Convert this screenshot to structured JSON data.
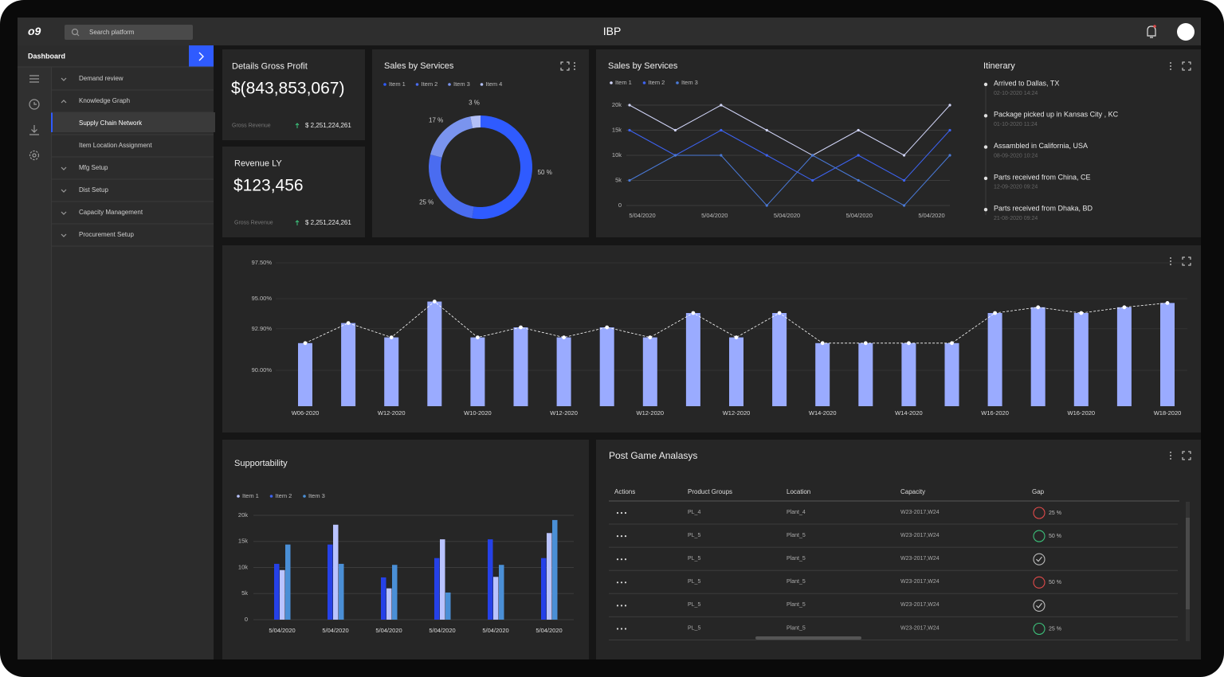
{
  "header": {
    "logo": "o9",
    "search_placeholder": "Search platform",
    "title": "IBP"
  },
  "sidebar": {
    "title": "Dashboard",
    "menu": [
      {
        "label": "Demand review"
      },
      {
        "label": "Knowledge Graph",
        "open": true,
        "items": [
          "Supply Chain Network",
          "Item Location Assignment"
        ],
        "active_item": 0
      },
      {
        "label": "Mfg Setup"
      },
      {
        "label": "Dist Setup"
      },
      {
        "label": "Capacity Management"
      },
      {
        "label": "Procurement Setup"
      }
    ]
  },
  "kpis": [
    {
      "title": "Details Gross Profit",
      "value": "$(843,853,067)",
      "caption": "Gross Revenue",
      "delta": "$ 2,251,224,261"
    },
    {
      "title": "Revenue LY",
      "value": "$123,456",
      "caption": "Gross Revenue",
      "delta": "$ 2,251,224,261"
    }
  ],
  "donut": {
    "type": "pie",
    "title": "Sales by Services",
    "categories": [
      "Item 1",
      "Item 2",
      "Item 3",
      "Item 4"
    ],
    "values": [
      50,
      25,
      17,
      3
    ],
    "value_labels": [
      "50 %",
      "25 %",
      "17 %",
      "3 %"
    ],
    "colors": [
      "#2f5bff",
      "#4a6cf0",
      "#7a94ee",
      "#b3c0f7"
    ],
    "donut": true
  },
  "line_chart": {
    "type": "line",
    "title": "Sales by Services",
    "x_labels": [
      "5/04/2020",
      "5/04/2020",
      "5/04/2020",
      "5/04/2020",
      "5/04/2020"
    ],
    "series": [
      {
        "name": "Item 1",
        "color": "#d0d4f7",
        "values": [
          20000,
          15000,
          20000,
          15000,
          10000,
          15000,
          10000,
          20000
        ]
      },
      {
        "name": "Item 2",
        "color": "#3d63f2",
        "values": [
          15000,
          10000,
          15000,
          10000,
          5000,
          10000,
          5000,
          15000
        ]
      },
      {
        "name": "Item 3",
        "color": "#4a7ad8",
        "values": [
          5000,
          10000,
          10000,
          0,
          10000,
          5000,
          0,
          10000
        ]
      }
    ],
    "ylim": [
      0,
      20000
    ],
    "yticks": [
      0,
      {
        "value": 5000,
        "label": "5k"
      },
      {
        "value": 10000,
        "label": "10k"
      },
      {
        "value": 15000,
        "label": "15k"
      },
      {
        "value": 20000,
        "label": "20k"
      }
    ],
    "grid": true
  },
  "itinerary": {
    "title": "Itinerary",
    "events": [
      {
        "title": "Arrived to Dallas, TX",
        "date": "02-10-2020 14:24"
      },
      {
        "title": "Package picked up in Kansas City , KC",
        "date": "01-10-2020 11:24"
      },
      {
        "title": "Assambled in California, USA",
        "date": "08-09-2020 10:24"
      },
      {
        "title": "Parts received from China, CE",
        "date": "12-09-2020 09:24"
      },
      {
        "title": "Parts received from Dhaka, BD",
        "date": "21-08-2020 09:24"
      }
    ]
  },
  "combo_chart": {
    "type": "bar",
    "categories": [
      "W06-2020",
      null,
      "W12-2020",
      null,
      "W10-2020",
      null,
      "W12-2020",
      null,
      "W12-2020",
      null,
      "W12-2020",
      null,
      "W14-2020",
      null,
      "W14-2020",
      null,
      "W16-2020",
      null,
      "W16-2020",
      null,
      "W18-2020"
    ],
    "values": [
      91.9,
      93.3,
      92.3,
      94.8,
      92.3,
      93.0,
      92.3,
      93.0,
      92.3,
      94.0,
      92.3,
      94.0,
      91.9,
      91.9,
      91.9,
      91.9,
      94.0,
      94.4,
      94.0,
      94.4,
      94.7
    ],
    "color": "#9aabff",
    "line_color": "#ffffff",
    "ylim": [
      87.5,
      97.5
    ],
    "yticks": [
      {
        "value": 90,
        "label": "90.00%"
      },
      {
        "value": 92.9,
        "label": "92.90%"
      },
      {
        "value": 95,
        "label": "95.00%"
      },
      {
        "value": 97.5,
        "label": "97.50%"
      }
    ],
    "grid": true
  },
  "supportability": {
    "type": "bar",
    "title": "Supportability",
    "categories": [
      "5/04/2020",
      "5/04/2020",
      "5/04/2020",
      "5/04/2020",
      "5/04/2020",
      "5/04/2020"
    ],
    "series": [
      {
        "name": "Item 1",
        "color": "#2541e8",
        "values": [
          10700,
          14400,
          8100,
          11800,
          15400,
          11800
        ]
      },
      {
        "name": "Item 2",
        "color": "#b9c3ff",
        "values": [
          9500,
          18200,
          6000,
          15400,
          8200,
          16600
        ]
      },
      {
        "name": "Item 3",
        "color": "#4a8fd6",
        "values": [
          14400,
          10700,
          10500,
          5200,
          10500,
          19100
        ]
      }
    ],
    "ylim": [
      0,
      20000
    ],
    "yticks": [
      0,
      {
        "value": 5000,
        "label": "5k"
      },
      {
        "value": 10000,
        "label": "10k"
      },
      {
        "value": 15000,
        "label": "15k"
      },
      {
        "value": 20000,
        "label": "20k"
      }
    ],
    "grid": true
  },
  "table": {
    "title": "Post Game Analasys",
    "columns": [
      "Actions",
      "Product Groups",
      "Location",
      "Capacity",
      "Gap"
    ],
    "rows": [
      {
        "product_group": "PL_4",
        "location": "Plant_4",
        "capacity": "W23-2017,W24",
        "gap": "25 %",
        "status": "red"
      },
      {
        "product_group": "PL_5",
        "location": "Plant_5",
        "capacity": "W23-2017,W24",
        "gap": "50 %",
        "status": "green"
      },
      {
        "product_group": "PL_5",
        "location": "Plant_5",
        "capacity": "W23-2017,W24",
        "gap": null,
        "status": "check"
      },
      {
        "product_group": "PL_5",
        "location": "Plant_5",
        "capacity": "W23-2017,W24",
        "gap": "50 %",
        "status": "red"
      },
      {
        "product_group": "PL_5",
        "location": "Plant_5",
        "capacity": "W23-2017,W24",
        "gap": null,
        "status": "check"
      },
      {
        "product_group": "PL_5",
        "location": "Plant_5",
        "capacity": "W23-2017,W24",
        "gap": "25 %",
        "status": "green"
      }
    ]
  }
}
